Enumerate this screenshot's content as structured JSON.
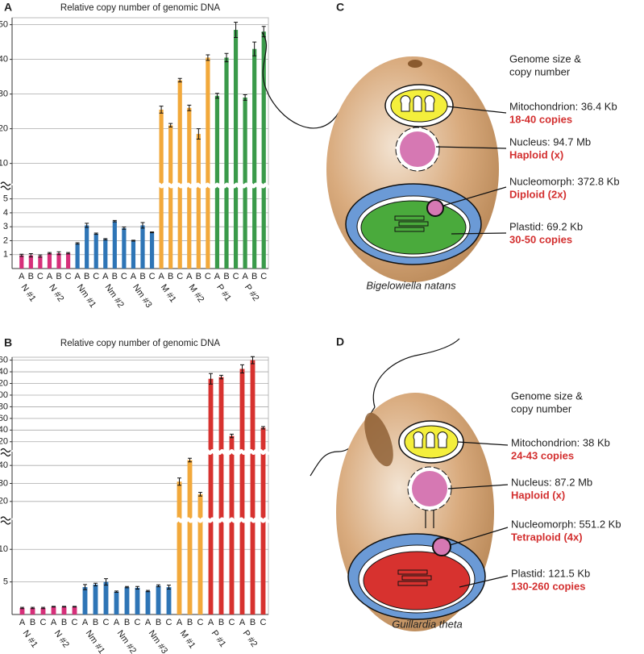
{
  "chart_data": [
    {
      "type": "bar",
      "panel": "A",
      "title": "Relative copy number of genomic DNA",
      "ylim": [
        0,
        52
      ],
      "ybreaks": [
        [
          5.5,
          5.5
        ]
      ],
      "yticks": [
        1,
        2,
        3,
        4,
        5,
        10,
        20,
        30,
        40,
        50
      ],
      "grid": true,
      "series": [
        {
          "name": "N #1",
          "color": "#d6307a",
          "categories": [
            "A",
            "B",
            "C"
          ],
          "values": [
            0.95,
            0.95,
            0.9
          ],
          "errors": [
            0.08,
            0.12,
            0.08
          ]
        },
        {
          "name": "N #2",
          "color": "#d6307a",
          "categories": [
            "A",
            "B",
            "C"
          ],
          "values": [
            1.1,
            1.1,
            1.1
          ],
          "errors": [
            0.05,
            0.1,
            0.05
          ]
        },
        {
          "name": "Nm #1",
          "color": "#2e75b6",
          "categories": [
            "A",
            "B",
            "C"
          ],
          "values": [
            1.8,
            3.1,
            2.5
          ],
          "errors": [
            0.05,
            0.15,
            0.05
          ]
        },
        {
          "name": "Nm #2",
          "color": "#2e75b6",
          "categories": [
            "A",
            "B",
            "C"
          ],
          "values": [
            2.1,
            3.4,
            2.9
          ],
          "errors": [
            0.05,
            0.05,
            0.08
          ]
        },
        {
          "name": "Nm #3",
          "color": "#2e75b6",
          "categories": [
            "A",
            "B",
            "C"
          ],
          "values": [
            2.0,
            3.1,
            2.6
          ],
          "errors": [
            0.03,
            0.2,
            0.03
          ]
        },
        {
          "name": "M #1",
          "color": "#f2a93b",
          "categories": [
            "A",
            "B",
            "C"
          ],
          "values": [
            25.5,
            21,
            34
          ],
          "errors": [
            1,
            0.5,
            0.5
          ]
        },
        {
          "name": "M #2",
          "color": "#f2a93b",
          "categories": [
            "A",
            "B",
            "C"
          ],
          "values": [
            26,
            18.5,
            40.5
          ],
          "errors": [
            0.8,
            1.5,
            0.8
          ]
        },
        {
          "name": "P #1",
          "color": "#3a9a4a",
          "categories": [
            "A",
            "B",
            "C"
          ],
          "values": [
            29.5,
            40.5,
            48.5
          ],
          "errors": [
            0.7,
            1.2,
            2.2
          ]
        },
        {
          "name": "P #2",
          "color": "#3a9a4a",
          "categories": [
            "A",
            "B",
            "C"
          ],
          "values": [
            29,
            43,
            48
          ],
          "errors": [
            0.8,
            2,
            1.5
          ]
        }
      ]
    },
    {
      "type": "bar",
      "panel": "B",
      "title": "Relative copy number of genomic DNA",
      "ylim": [
        0,
        265
      ],
      "ybreaks": [
        [
          13,
          15
        ],
        [
          45,
          110
        ]
      ],
      "yticks": [
        5,
        10,
        20,
        30,
        40,
        120,
        140,
        160,
        180,
        200,
        220,
        240,
        260
      ],
      "grid": true,
      "series": [
        {
          "name": "N #1",
          "color": "#d6307a",
          "categories": [
            "A",
            "B",
            "C"
          ],
          "values": [
            1.0,
            1.0,
            1.0
          ],
          "errors": [
            0.1,
            0.1,
            0.1
          ]
        },
        {
          "name": "N #2",
          "color": "#d6307a",
          "categories": [
            "A",
            "B",
            "C"
          ],
          "values": [
            1.2,
            1.2,
            1.2
          ],
          "errors": [
            0.05,
            0.05,
            0.05
          ]
        },
        {
          "name": "Nm #1",
          "color": "#2e75b6",
          "categories": [
            "A",
            "B",
            "C"
          ],
          "values": [
            4.2,
            4.6,
            5.0
          ],
          "errors": [
            0.4,
            0.2,
            0.5
          ]
        },
        {
          "name": "Nm #2",
          "color": "#2e75b6",
          "categories": [
            "A",
            "B",
            "C"
          ],
          "values": [
            3.5,
            4.2,
            4.1
          ],
          "errors": [
            0.1,
            0.1,
            0.2
          ]
        },
        {
          "name": "Nm #3",
          "color": "#2e75b6",
          "categories": [
            "A",
            "B",
            "C"
          ],
          "values": [
            3.6,
            4.4,
            4.2
          ],
          "errors": [
            0.1,
            0.15,
            0.3
          ]
        },
        {
          "name": "M #1",
          "color": "#f2a93b",
          "categories": [
            "A",
            "B",
            "C"
          ],
          "values": [
            31,
            43,
            24
          ],
          "errors": [
            2,
            1,
            1
          ]
        },
        {
          "name": "P #1",
          "color": "#d7322f",
          "categories": [
            "A",
            "B",
            "C"
          ],
          "values": [
            228,
            231,
            130
          ],
          "errors": [
            9,
            3,
            3
          ]
        },
        {
          "name": "P #2",
          "color": "#d7322f",
          "categories": [
            "A",
            "B",
            "C"
          ],
          "values": [
            245,
            260,
            144
          ],
          "errors": [
            7,
            6,
            2
          ]
        }
      ]
    }
  ],
  "diagrams": [
    {
      "panel": "C",
      "header": [
        "Genome size &",
        "copy number"
      ],
      "organelles": [
        {
          "label": "Mitochondrion: 36.4 Kb",
          "copies": "18-40 copies"
        },
        {
          "label": "Nucleus: 94.7 Mb",
          "copies": "Haploid (x)"
        },
        {
          "label": "Nucleomorph: 372.8 Kb",
          "copies": "Diploid (2x)"
        },
        {
          "label": "Plastid: 69.2 Kb",
          "copies": "30-50 copies"
        }
      ],
      "species": "Bigelowiella natans"
    },
    {
      "panel": "D",
      "header": [
        "Genome size &",
        "copy number"
      ],
      "organelles": [
        {
          "label": "Mitochondrion: 38 Kb",
          "copies": "24-43 copies"
        },
        {
          "label": "Nucleus: 87.2 Mb",
          "copies": "Haploid (x)"
        },
        {
          "label": "Nucleomorph: 551.2 Kb",
          "copies": "Tetraploid (4x)"
        },
        {
          "label": "Plastid: 121.5 Kb",
          "copies": "130-260 copies"
        }
      ],
      "species": "Guillardia theta"
    }
  ]
}
